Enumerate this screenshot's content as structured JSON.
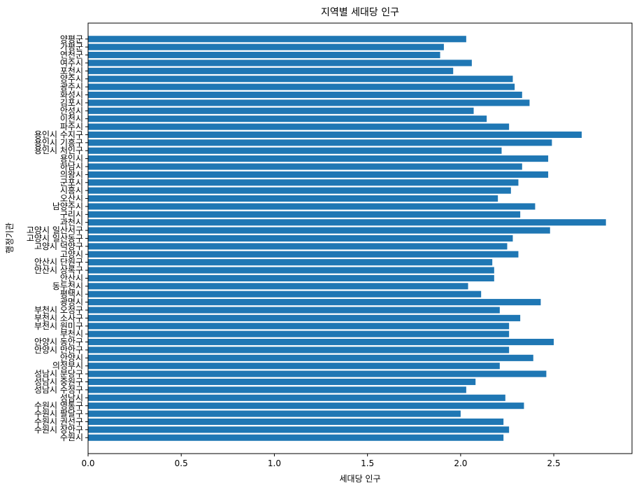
{
  "chart_data": {
    "type": "bar",
    "orientation": "horizontal",
    "title": "지역별 세대당 인구",
    "xlabel": "세대당 인구",
    "ylabel": "행정기관",
    "xlim": [
      0,
      2.92
    ],
    "xticks": [
      0.0,
      0.5,
      1.0,
      1.5,
      2.0,
      2.5
    ],
    "xtick_labels": [
      "0.0",
      "0.5",
      "1.0",
      "1.5",
      "2.0",
      "2.5"
    ],
    "bar_color": "#1f77b4",
    "grid": false,
    "categories": [
      "수원시",
      "수원시 장안구",
      "수원시 권선구",
      "수원시 팔달구",
      "수원시 영통구",
      "성남시",
      "성남시 수정구",
      "성남시 중원구",
      "성남시 분당구",
      "의정부시",
      "안양시",
      "안양시 만안구",
      "안양시 동안구",
      "부천시",
      "부천시 원미구",
      "부천시 소사구",
      "부천시 오정구",
      "광명시",
      "평택시",
      "동두천시",
      "안산시",
      "안산시 상록구",
      "안산시 단원구",
      "고양시",
      "고양시 덕양구",
      "고양시 일산동구",
      "고양시 일산서구",
      "과천시",
      "구리시",
      "남양주시",
      "오산시",
      "시흥시",
      "군포시",
      "의왕시",
      "하남시",
      "용인시",
      "용인시 처인구",
      "용인시 기흥구",
      "용인시 수지구",
      "파주시",
      "이천시",
      "안성시",
      "김포시",
      "화성시",
      "광주시",
      "양주시",
      "포천시",
      "여주시",
      "연천군",
      "가평군",
      "양평군"
    ],
    "values": [
      2.23,
      2.26,
      2.23,
      2.0,
      2.34,
      2.24,
      2.03,
      2.08,
      2.46,
      2.21,
      2.39,
      2.26,
      2.5,
      2.26,
      2.26,
      2.32,
      2.21,
      2.43,
      2.11,
      2.04,
      2.18,
      2.18,
      2.17,
      2.31,
      2.25,
      2.28,
      2.48,
      2.78,
      2.32,
      2.4,
      2.2,
      2.27,
      2.31,
      2.47,
      2.33,
      2.47,
      2.22,
      2.49,
      2.65,
      2.26,
      2.14,
      2.07,
      2.37,
      2.33,
      2.29,
      2.28,
      1.96,
      2.06,
      1.89,
      1.91,
      2.03
    ]
  }
}
